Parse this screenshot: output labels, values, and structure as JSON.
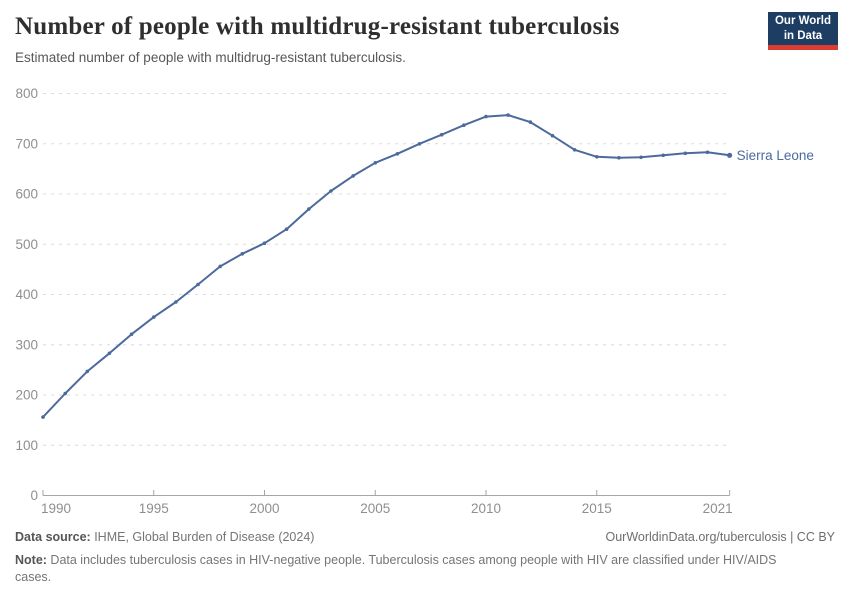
{
  "header": {
    "title": "Number of people with multidrug-resistant tuberculosis",
    "subtitle": "Estimated number of people with multidrug-resistant tuberculosis.",
    "logo": {
      "line1": "Our World",
      "line2": "in Data"
    }
  },
  "chart_data": {
    "type": "line",
    "title": "Number of people with multidrug-resistant tuberculosis",
    "subtitle": "Estimated number of people with multidrug-resistant tuberculosis.",
    "xlabel": "",
    "ylabel": "",
    "xlim": [
      1990,
      2021
    ],
    "ylim": [
      0,
      800
    ],
    "yticks": [
      0,
      100,
      200,
      300,
      400,
      500,
      600,
      700,
      800
    ],
    "xticks": [
      1990,
      1995,
      2000,
      2005,
      2010,
      2015,
      2021
    ],
    "grid": "horizontal-dashed",
    "legend": "inline-end-label",
    "series": [
      {
        "name": "Sierra Leone",
        "color": "#4c6a9c",
        "x": [
          1990,
          1991,
          1992,
          1993,
          1994,
          1995,
          1996,
          1997,
          1998,
          1999,
          2000,
          2001,
          2002,
          2003,
          2004,
          2005,
          2006,
          2007,
          2008,
          2009,
          2010,
          2011,
          2012,
          2013,
          2014,
          2015,
          2016,
          2017,
          2018,
          2019,
          2020,
          2021
        ],
        "values": [
          156,
          203,
          247,
          283,
          321,
          355,
          385,
          420,
          456,
          481,
          502,
          530,
          570,
          606,
          636,
          662,
          680,
          700,
          718,
          737,
          754,
          757,
          743,
          716,
          688,
          674,
          672,
          673,
          677,
          681,
          683,
          677
        ]
      }
    ]
  },
  "footer": {
    "source_label": "Data source:",
    "source_text": " IHME, Global Burden of Disease (2024)",
    "link": "OurWorldinData.org/tuberculosis | CC BY",
    "note_label": "Note:",
    "note_text": " Data includes tuberculosis cases in HIV-negative people. Tuberculosis cases among people with HIV are classified under HIV/AIDS cases."
  },
  "colors": {
    "accent_line": "#4c6a9c",
    "logo_background": "#1d3d63",
    "logo_red_bar": "#dc3d33",
    "gridline": "#dcdcdc",
    "axis_line": "#a6a6a6",
    "tick_label": "#8f8f8f"
  }
}
